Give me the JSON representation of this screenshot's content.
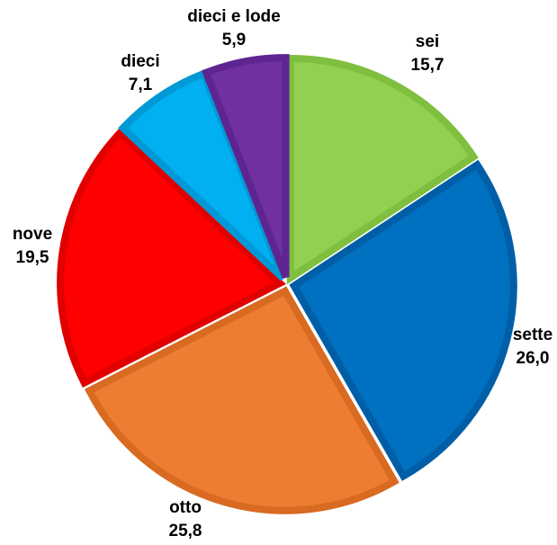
{
  "chart_data": {
    "type": "pie",
    "title": "",
    "slices": [
      {
        "label": "sei",
        "value": 15.7,
        "value_label": "15,7",
        "color": "#92D050",
        "edge": "#7FBF3F"
      },
      {
        "label": "sette",
        "value": 26.0,
        "value_label": "26,0",
        "color": "#0070C0",
        "edge": "#005EA6"
      },
      {
        "label": "otto",
        "value": 25.8,
        "value_label": "25,8",
        "color": "#ED7D31",
        "edge": "#D86A22"
      },
      {
        "label": "nove",
        "value": 19.5,
        "value_label": "19,5",
        "color": "#FF0000",
        "edge": "#E00000"
      },
      {
        "label": "dieci",
        "value": 7.1,
        "value_label": "7,1",
        "color": "#00B0F0",
        "edge": "#0099D6"
      },
      {
        "label": "dieci e lode",
        "value": 5.9,
        "value_label": "5,9",
        "color": "#7030A0",
        "edge": "#5E2590"
      }
    ],
    "start": "top",
    "direction": "clockwise",
    "exploded": true,
    "legend": "none",
    "data_labels": "outside"
  }
}
